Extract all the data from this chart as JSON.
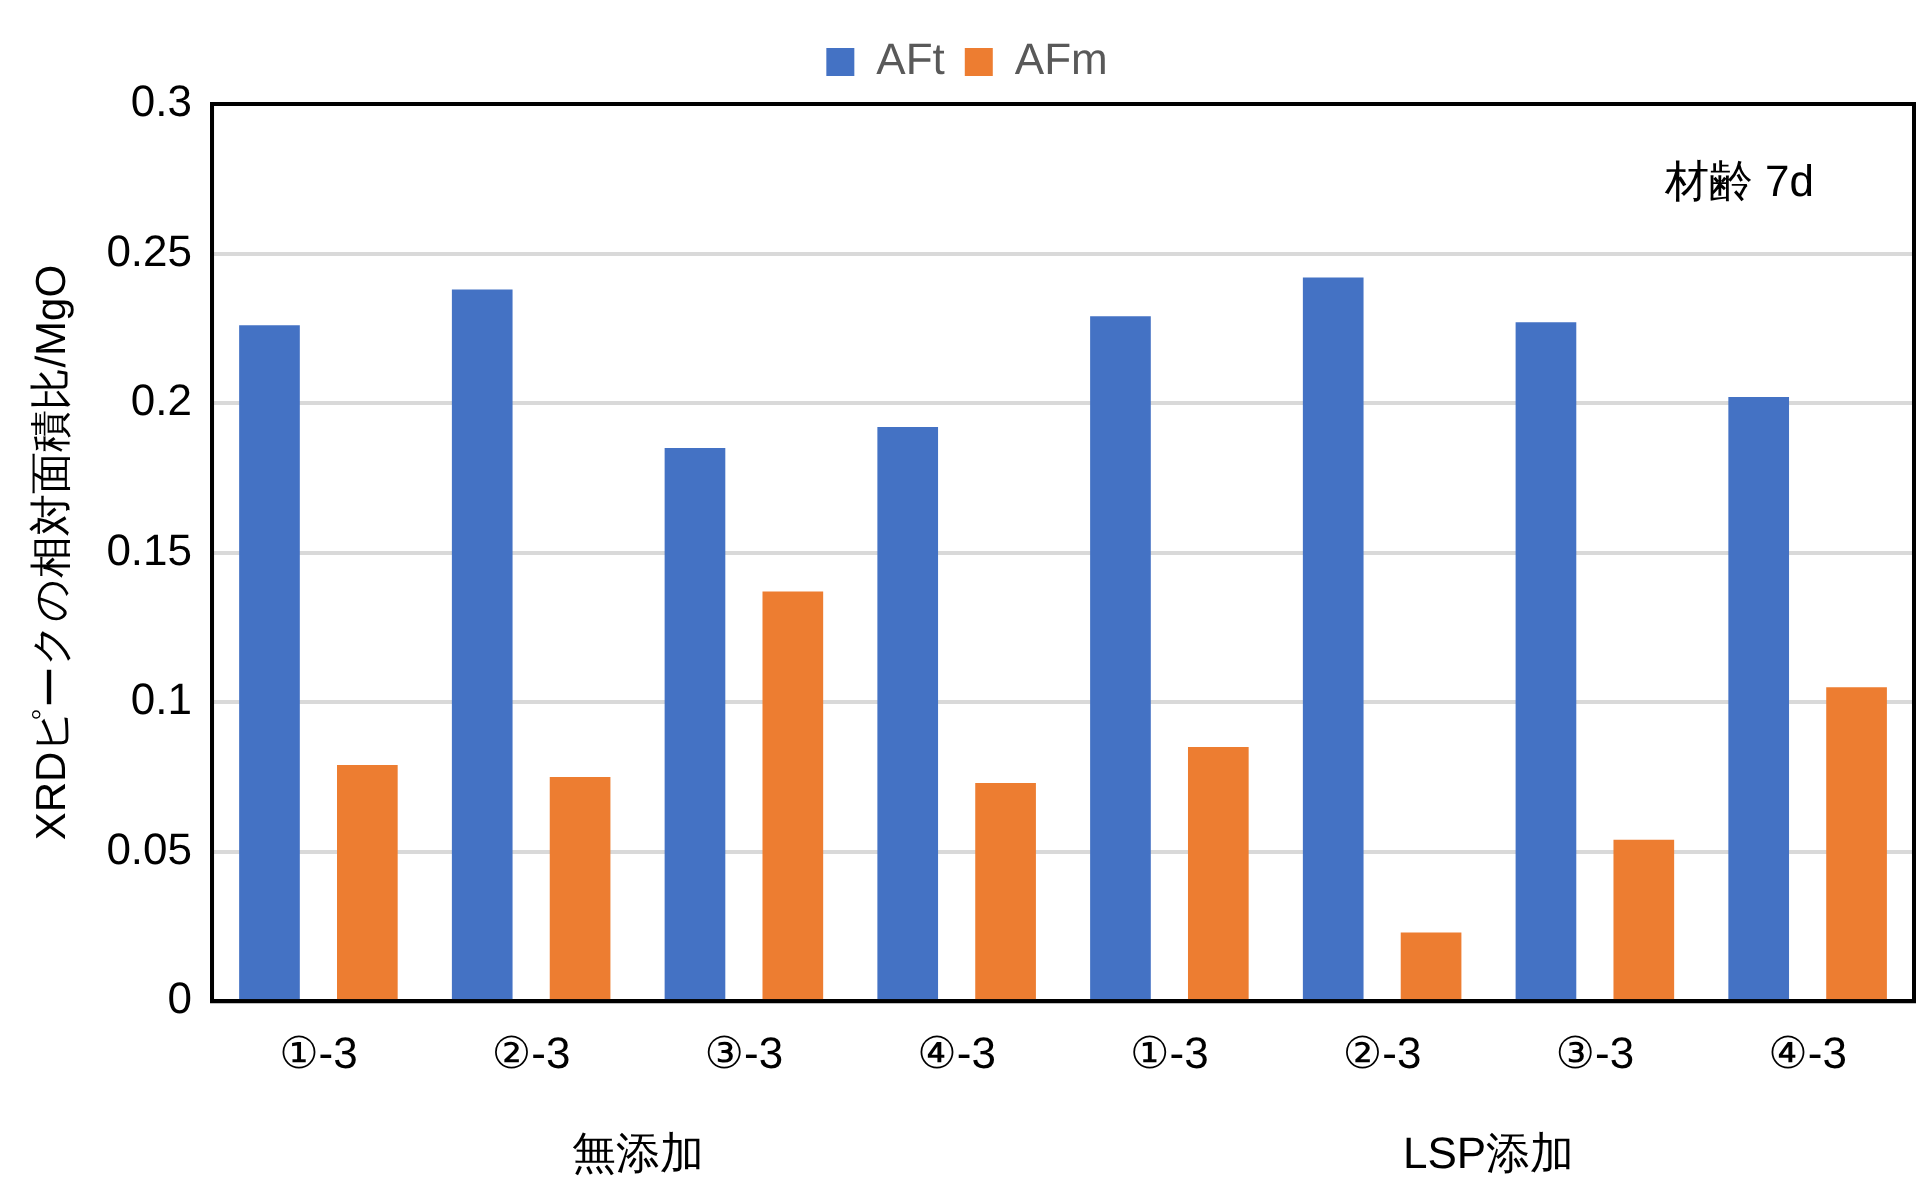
{
  "chart_data": {
    "type": "bar",
    "ylabel": "XRDピークの相対面積比/MgO",
    "categories": [
      "①-3",
      "②-3",
      "③-3",
      "④-3",
      "①-3",
      "②-3",
      "③-3",
      "④-3"
    ],
    "series": [
      {
        "name": "AFt",
        "color": "#4472c4",
        "values": [
          0.226,
          0.238,
          0.185,
          0.192,
          0.229,
          0.242,
          0.227,
          0.202
        ]
      },
      {
        "name": "AFm",
        "color": "#ed7d31",
        "values": [
          0.079,
          0.075,
          0.137,
          0.073,
          0.085,
          0.023,
          0.054,
          0.105
        ]
      }
    ],
    "ylim": [
      0,
      0.3
    ],
    "yticks": [
      0,
      0.05,
      0.1,
      0.15,
      0.2,
      0.25,
      0.3
    ],
    "grid": "y",
    "legend": "top",
    "annotations": [
      "材齢 7d",
      "無添加",
      "LSP添加"
    ]
  }
}
